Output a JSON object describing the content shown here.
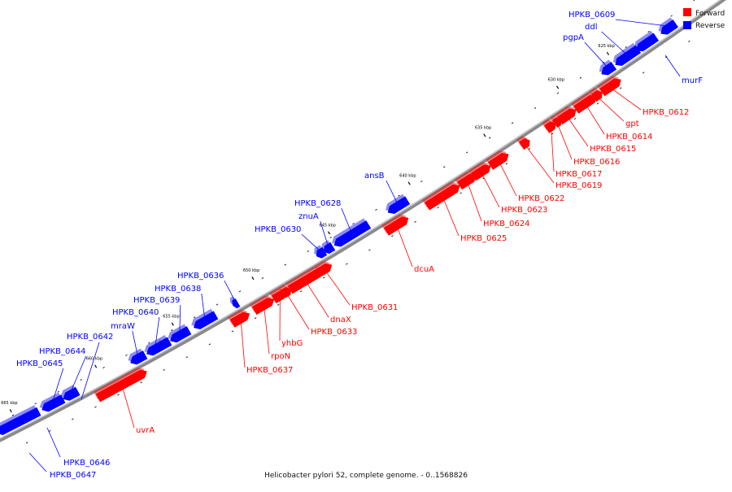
{
  "title": "Helicobacter pylori 52, complete genome. - 0..1568826",
  "legend": [
    {
      "label": "Forward",
      "color": "#ff0000"
    },
    {
      "label": "Reverse",
      "color": "#0000ff"
    }
  ],
  "colors": {
    "forward": "#ff0000",
    "reverse": "#0000ff",
    "backbone": "#888888"
  },
  "scale_labels": [
    "625 kbp",
    "630 kbp",
    "635 kbp",
    "640 kbp",
    "645 kbp",
    "650 kbp",
    "655 kbp",
    "660 kbp",
    "665 kbp"
  ],
  "forward_genes": [
    "HPKB_0612",
    "gpt",
    "HPKB_0614",
    "HPKB_0615",
    "HPKB_0616",
    "HPKB_0617",
    "HPKB_0619",
    "HPKB_0622",
    "HPKB_0623",
    "HPKB_0624",
    "HPKB_0625",
    "dcuA",
    "HPKB_0631",
    "dnaX",
    "HPKB_0633",
    "yhbG",
    "rpoN",
    "HPKB_0637",
    "uvrA"
  ],
  "reverse_genes": [
    "HPKB_0609",
    "ddl",
    "pgpA",
    "murF",
    "ansB",
    "HPKB_0628",
    "znuA",
    "HPKB_0630",
    "HPKB_0636",
    "HPKB_0638",
    "HPKB_0639",
    "HPKB_0640",
    "mraW",
    "HPKB_0642",
    "HPKB_0644",
    "HPKB_0645",
    "HPKB_0646",
    "HPKB_0647"
  ]
}
